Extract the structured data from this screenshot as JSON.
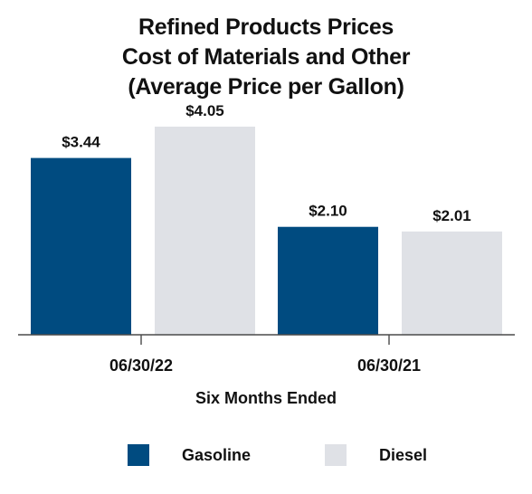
{
  "chart_data": {
    "type": "bar",
    "title_lines": [
      "Refined Products Prices",
      "Cost of Materials and Other",
      "(Average Price per Gallon)"
    ],
    "categories": [
      "06/30/22",
      "06/30/21"
    ],
    "xlabel": "Six Months Ended",
    "ylabel": "",
    "ylim": [
      0,
      4.6
    ],
    "grid": false,
    "legend_position": "bottom",
    "series": [
      {
        "name": "Gasoline",
        "color": "#004b80",
        "values": [
          3.44,
          2.1
        ],
        "labels": [
          "$3.44",
          "$2.10"
        ]
      },
      {
        "name": "Diesel",
        "color": "#dfe1e6",
        "values": [
          4.05,
          2.01
        ],
        "labels": [
          "$4.05",
          "$2.01"
        ]
      }
    ]
  }
}
